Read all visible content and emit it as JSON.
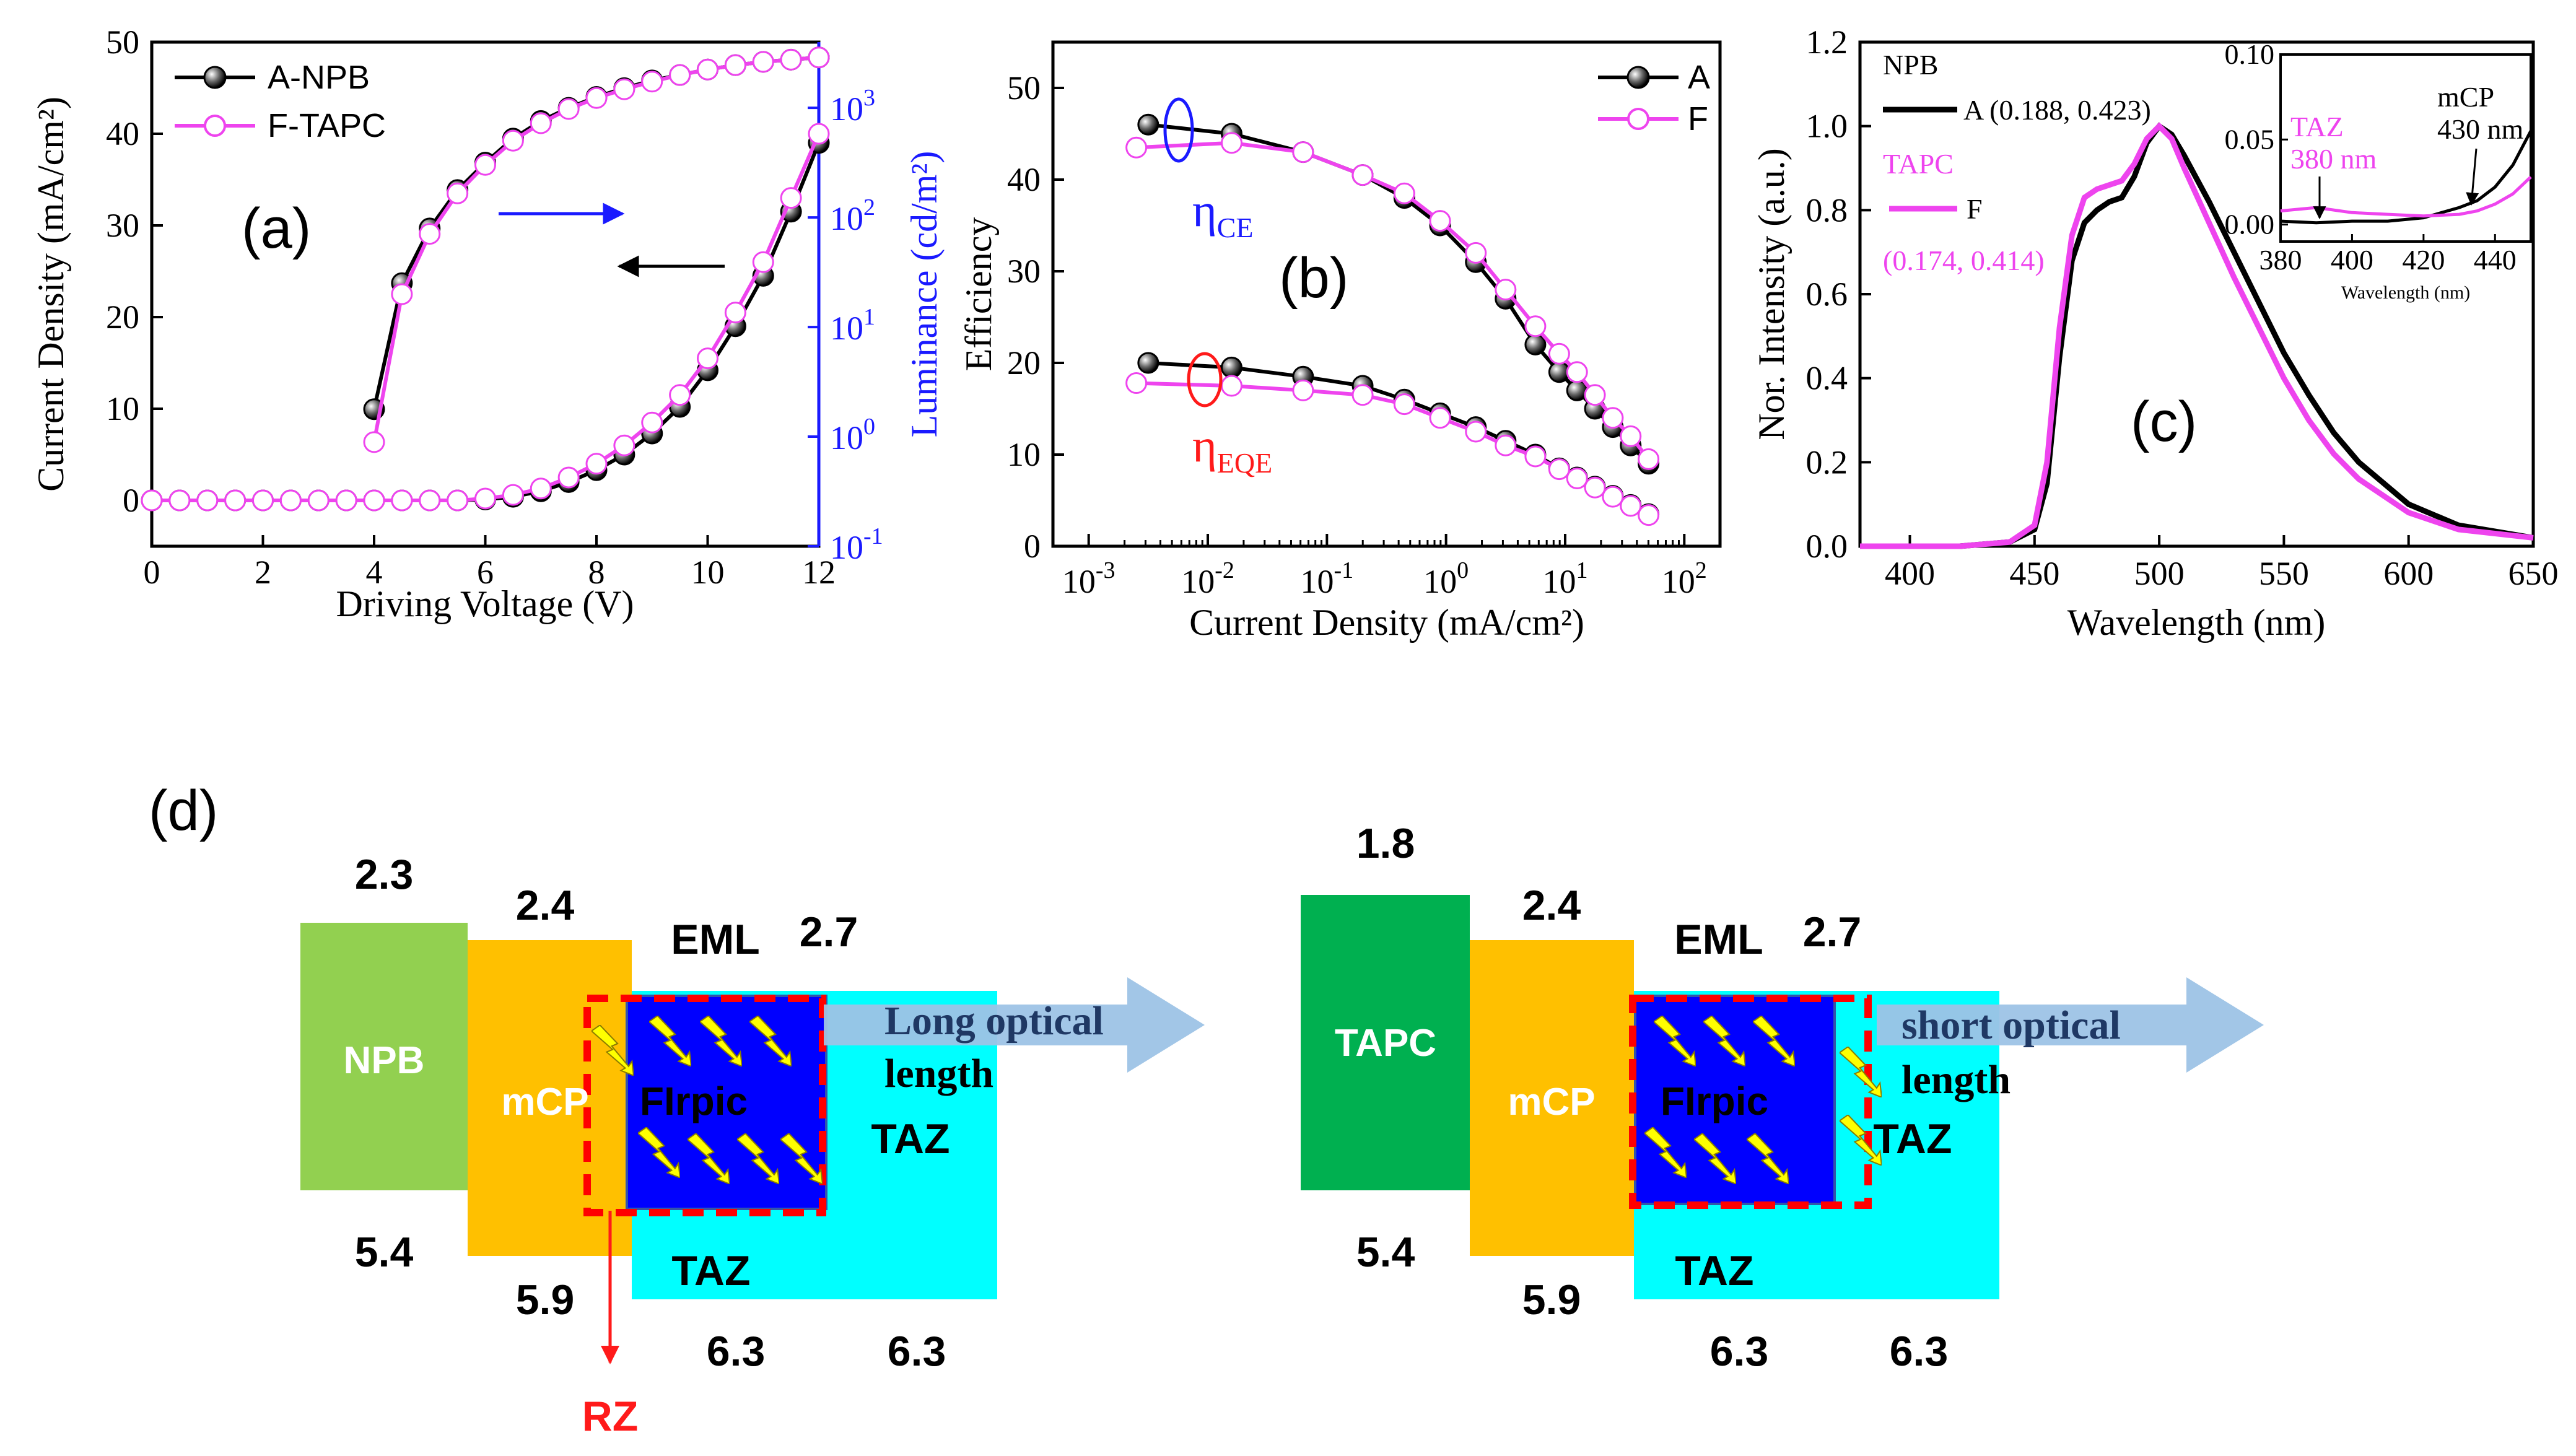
{
  "chart_data": [
    {
      "panel": "(a)",
      "type": "line",
      "xlabel": "Driving Voltage (V)",
      "ylabel": "Current Density (mA/cm²)",
      "y2label": "Luminance (cd/m²)",
      "xlim": [
        0,
        12
      ],
      "ylim": [
        -5,
        50
      ],
      "y2lim_log10": [
        -1,
        3.6
      ],
      "x_ticks": [
        "0",
        "2",
        "4",
        "6",
        "8",
        "10",
        "12"
      ],
      "y_ticks": [
        "0",
        "10",
        "20",
        "30",
        "40",
        "50"
      ],
      "y2_ticks": [
        {
          "base": "10",
          "exp": "-1",
          "v": -1
        },
        {
          "base": "10",
          "exp": "0",
          "v": 0
        },
        {
          "base": "10",
          "exp": "1",
          "v": 1
        },
        {
          "base": "10",
          "exp": "2",
          "v": 2
        },
        {
          "base": "10",
          "exp": "3",
          "v": 3
        }
      ],
      "legend": [
        "A-NPB",
        "F-TAPC"
      ],
      "series_current": [
        {
          "name": "A-NPB",
          "x": [
            0,
            0.5,
            1,
            1.5,
            2,
            2.5,
            3,
            3.5,
            4,
            4.5,
            5,
            5.5,
            6,
            6.5,
            7,
            7.5,
            8,
            8.5,
            9,
            9.5,
            10,
            10.5,
            11,
            11.5,
            12
          ],
          "y": [
            0,
            0,
            0,
            0,
            0,
            0,
            0,
            0,
            0,
            0,
            0,
            0,
            0.1,
            0.4,
            1,
            2,
            3.3,
            5,
            7.3,
            10.2,
            14.2,
            19,
            24.5,
            31.5,
            39
          ]
        },
        {
          "name": "F-TAPC",
          "x": [
            0,
            0.5,
            1,
            1.5,
            2,
            2.5,
            3,
            3.5,
            4,
            4.5,
            5,
            5.5,
            6,
            6.5,
            7,
            7.5,
            8,
            8.5,
            9,
            9.5,
            10,
            10.5,
            11,
            11.5,
            12
          ],
          "y": [
            0,
            0,
            0,
            0,
            0,
            0,
            0,
            0,
            0,
            0,
            0,
            0,
            0.2,
            0.6,
            1.3,
            2.5,
            4,
            6,
            8.5,
            11.5,
            15.5,
            20.5,
            26,
            33,
            40
          ]
        }
      ],
      "series_luminance_log10": [
        {
          "name": "A-NPB",
          "x": [
            4,
            4.5,
            5,
            5.5,
            6,
            6.5,
            7,
            7.5,
            8,
            8.5,
            9,
            9.5,
            10,
            10.5,
            11,
            11.5,
            12
          ],
          "y": [
            0.25,
            1.4,
            1.9,
            2.25,
            2.5,
            2.72,
            2.88,
            3.0,
            3.1,
            3.18,
            3.25,
            3.3,
            3.35,
            3.39,
            3.42,
            3.44,
            3.46
          ]
        },
        {
          "name": "F-TAPC",
          "x": [
            4,
            4.5,
            5,
            5.5,
            6,
            6.5,
            7,
            7.5,
            8,
            8.5,
            9,
            9.5,
            10,
            10.5,
            11,
            11.5,
            12
          ],
          "y": [
            -0.05,
            1.3,
            1.85,
            2.22,
            2.48,
            2.7,
            2.86,
            2.99,
            3.09,
            3.17,
            3.24,
            3.3,
            3.35,
            3.39,
            3.42,
            3.44,
            3.46
          ]
        }
      ]
    },
    {
      "panel": "(b)",
      "type": "line",
      "xlabel": "Current Density (mA/cm²)",
      "ylabel": "Efficiency",
      "xlim_log10": [
        -3.3,
        2.3
      ],
      "ylim": [
        0,
        55
      ],
      "x_ticks": [
        {
          "base": "10",
          "exp": "-3",
          "v": -3
        },
        {
          "base": "10",
          "exp": "-2",
          "v": -2
        },
        {
          "base": "10",
          "exp": "-1",
          "v": -1
        },
        {
          "base": "10",
          "exp": "0",
          "v": 0
        },
        {
          "base": "10",
          "exp": "1",
          "v": 1
        },
        {
          "base": "10",
          "exp": "2",
          "v": 2
        }
      ],
      "y_ticks": [
        "0",
        "10",
        "20",
        "30",
        "40",
        "50"
      ],
      "legend": [
        "A",
        "F"
      ],
      "series": [
        {
          "name": "A (η_CE)",
          "x_log10": [
            -2.5,
            -1.8,
            -1.2,
            -0.7,
            -0.35,
            -0.05,
            0.25,
            0.5,
            0.75,
            0.95,
            1.1,
            1.25,
            1.4,
            1.55,
            1.7
          ],
          "y": [
            46,
            45,
            43,
            40.5,
            38,
            35,
            31,
            27,
            22,
            19,
            17,
            15,
            13,
            11,
            9
          ]
        },
        {
          "name": "F (η_CE)",
          "x_log10": [
            -2.6,
            -1.8,
            -1.2,
            -0.7,
            -0.35,
            -0.05,
            0.25,
            0.5,
            0.75,
            0.95,
            1.1,
            1.25,
            1.4,
            1.55,
            1.7
          ],
          "y": [
            43.5,
            44,
            43,
            40.5,
            38.5,
            35.5,
            32,
            28,
            24,
            21,
            19,
            16.5,
            14,
            12,
            9.5
          ]
        },
        {
          "name": "A (η_EQE)",
          "x_log10": [
            -2.5,
            -1.8,
            -1.2,
            -0.7,
            -0.35,
            -0.05,
            0.25,
            0.5,
            0.75,
            0.95,
            1.1,
            1.25,
            1.4,
            1.55,
            1.7
          ],
          "y": [
            20,
            19.5,
            18.5,
            17.5,
            16,
            14.5,
            13,
            11.5,
            10,
            8.5,
            7.5,
            6.5,
            5.5,
            4.5,
            3.5
          ]
        },
        {
          "name": "F (η_EQE)",
          "x_log10": [
            -2.6,
            -1.8,
            -1.2,
            -0.7,
            -0.35,
            -0.05,
            0.25,
            0.5,
            0.75,
            0.95,
            1.1,
            1.25,
            1.4,
            1.55,
            1.7
          ],
          "y": [
            17.8,
            17.5,
            17,
            16.5,
            15.5,
            14,
            12.5,
            11,
            9.8,
            8.4,
            7.4,
            6.4,
            5.4,
            4.4,
            3.4
          ]
        }
      ],
      "annotations": {
        "ce_main": "η",
        "ce_sub": "CE",
        "eqe_main": "η",
        "eqe_sub": "EQE"
      }
    },
    {
      "panel": "(c)",
      "type": "line",
      "xlabel": "Wavelength (nm)",
      "ylabel": "Nor. Intensity (a.u.)",
      "xlim": [
        380,
        650
      ],
      "ylim": [
        0,
        1.2
      ],
      "x_ticks": [
        "400",
        "450",
        "500",
        "550",
        "600",
        "650"
      ],
      "y_ticks": [
        "0.0",
        "0.2",
        "0.4",
        "0.6",
        "0.8",
        "1.0",
        "1.2"
      ],
      "legend": {
        "a_head": "NPB",
        "a_name": "A (0.188, 0.423)",
        "f_head": "TAPC",
        "f_name": "F",
        "f_coords": "(0.174, 0.414)"
      },
      "series": [
        {
          "name": "A",
          "x": [
            380,
            400,
            420,
            440,
            450,
            455,
            460,
            465,
            470,
            475,
            480,
            485,
            490,
            495,
            500,
            505,
            510,
            520,
            530,
            540,
            550,
            560,
            570,
            580,
            600,
            620,
            650
          ],
          "y": [
            0,
            0,
            0,
            0.01,
            0.04,
            0.15,
            0.45,
            0.68,
            0.77,
            0.8,
            0.82,
            0.83,
            0.88,
            0.96,
            1.0,
            0.98,
            0.93,
            0.82,
            0.7,
            0.58,
            0.46,
            0.36,
            0.27,
            0.2,
            0.1,
            0.05,
            0.02
          ]
        },
        {
          "name": "F",
          "x": [
            380,
            400,
            420,
            440,
            450,
            455,
            460,
            465,
            470,
            475,
            480,
            485,
            490,
            495,
            500,
            505,
            510,
            520,
            530,
            540,
            550,
            560,
            570,
            580,
            600,
            620,
            650
          ],
          "y": [
            0,
            0,
            0,
            0.01,
            0.05,
            0.2,
            0.52,
            0.74,
            0.83,
            0.85,
            0.86,
            0.87,
            0.91,
            0.97,
            1.0,
            0.97,
            0.9,
            0.77,
            0.64,
            0.52,
            0.4,
            0.3,
            0.22,
            0.16,
            0.08,
            0.04,
            0.02
          ]
        }
      ],
      "inset": {
        "xlim": [
          380,
          450
        ],
        "ylim": [
          -0.01,
          0.1
        ],
        "x_ticks": [
          "380",
          "400",
          "420",
          "440"
        ],
        "y_ticks": [
          "0.00",
          "0.05",
          "0.10"
        ],
        "xlabel": "Wavelength (nm)",
        "taz_label": "TAZ",
        "taz_nm": "380 nm",
        "mcp_label": "mCP",
        "mcp_nm": "430 nm",
        "series": [
          {
            "name": "A",
            "x": [
              380,
              390,
              400,
              410,
              420,
              430,
              435,
              440,
              445,
              450
            ],
            "y": [
              0.002,
              0.001,
              0.002,
              0.002,
              0.004,
              0.01,
              0.014,
              0.022,
              0.035,
              0.055
            ]
          },
          {
            "name": "F",
            "x": [
              380,
              390,
              400,
              410,
              420,
              430,
              435,
              440,
              445,
              450
            ],
            "y": [
              0.008,
              0.01,
              0.007,
              0.006,
              0.005,
              0.006,
              0.008,
              0.012,
              0.018,
              0.028
            ]
          }
        ]
      }
    }
  ],
  "panel_labels": {
    "a": "(a)",
    "b": "(b)",
    "c": "(c)",
    "d": "(d)"
  },
  "diagram_left": {
    "npb": {
      "name": "NPB",
      "lumo": "2.3",
      "homo": "5.4"
    },
    "mcp": {
      "name": "mCP",
      "lumo": "2.4",
      "homo": "5.9"
    },
    "eml": {
      "label": "EML",
      "lumo": "2.7",
      "emitter": "FIrpic"
    },
    "taz": {
      "name": "TAZ",
      "name_lower": "TAZ",
      "homo1": "6.3",
      "homo2": "6.3"
    },
    "rz": "RZ",
    "optical": {
      "line1": "Long optical",
      "line2": "length"
    }
  },
  "diagram_right": {
    "tapc": {
      "name": "TAPC",
      "lumo": "1.8",
      "homo": "5.4"
    },
    "mcp": {
      "name": "mCP",
      "lumo": "2.4",
      "homo": "5.9"
    },
    "eml": {
      "label": "EML",
      "lumo": "2.7",
      "emitter": "FIrpic"
    },
    "taz": {
      "name": "TAZ",
      "name_lower": "TAZ",
      "homo1": "6.3",
      "homo2": "6.3"
    },
    "optical": {
      "line1": "short optical",
      "line2": "length"
    }
  },
  "colors": {
    "black": "#000000",
    "magenta": "#ee44ee",
    "blue": "#1a1aff",
    "red": "#ff1a1a",
    "npb": "#92d050",
    "mcp": "#ffc000",
    "taz": "#00ffff",
    "eml": "#0000ff",
    "tapc": "#00b050",
    "arrow": "#9dc3e6",
    "dash": "#ff0000",
    "bolt": "#ffff00"
  }
}
